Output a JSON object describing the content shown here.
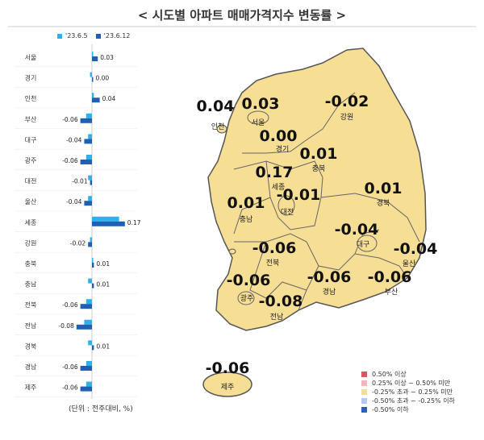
{
  "title": "< 시도별 아파트 매매가격지수 변동률 >",
  "colors": {
    "prev_week": "#2ab3ea",
    "curr_week": "#1f5fb4",
    "map_fill": "#f6de95",
    "map_stroke": "#555555"
  },
  "unit_note": "(단위 : 전주대비, %)",
  "chart_data": {
    "type": "bar",
    "orientation": "horizontal",
    "categories": [
      "서울",
      "경기",
      "인천",
      "부산",
      "대구",
      "광주",
      "대전",
      "울산",
      "세종",
      "강원",
      "충북",
      "충남",
      "전북",
      "전남",
      "경북",
      "경남",
      "제주"
    ],
    "series": [
      {
        "name": "'23.6.5",
        "values": [
          0.0,
          -0.01,
          0.01,
          -0.03,
          -0.02,
          -0.03,
          -0.02,
          -0.02,
          0.14,
          -0.01,
          0.0,
          -0.02,
          -0.03,
          -0.04,
          -0.02,
          -0.03,
          -0.03
        ]
      },
      {
        "name": "'23.6.12",
        "values": [
          0.03,
          0.0,
          0.04,
          -0.06,
          -0.04,
          -0.06,
          -0.01,
          -0.04,
          0.17,
          -0.02,
          0.01,
          0.01,
          -0.06,
          -0.08,
          0.01,
          -0.06,
          -0.06
        ]
      }
    ],
    "data_labels": [
      "0.03",
      "0.00",
      "0.04",
      "-0.06",
      "-0.04",
      "-0.06",
      "-0.01",
      "-0.04",
      "0.17",
      "-0.02",
      "0.01",
      "0.01",
      "-0.06",
      "-0.08",
      "0.01",
      "-0.06",
      "-0.06"
    ]
  },
  "map": {
    "regions": [
      {
        "name": "인천",
        "value": "0.04"
      },
      {
        "name": "서울",
        "value": "0.03"
      },
      {
        "name": "강원",
        "value": "-0.02"
      },
      {
        "name": "경기",
        "value": "0.00"
      },
      {
        "name": "충북",
        "value": "0.01"
      },
      {
        "name": "세종",
        "value": "0.17"
      },
      {
        "name": "대전",
        "value": "-0.01"
      },
      {
        "name": "충남",
        "value": "0.01"
      },
      {
        "name": "경북",
        "value": "0.01"
      },
      {
        "name": "대구",
        "value": "-0.04"
      },
      {
        "name": "울산",
        "value": "-0.04"
      },
      {
        "name": "전북",
        "value": "-0.06"
      },
      {
        "name": "광주",
        "value": "-0.06"
      },
      {
        "name": "경남",
        "value": "-0.06"
      },
      {
        "name": "부산",
        "value": "-0.06"
      },
      {
        "name": "전남",
        "value": "-0.08"
      },
      {
        "name": "제주",
        "value": "-0.06"
      }
    ]
  },
  "legend": [
    {
      "label": "0.50% 이상",
      "color": "#e2535d"
    },
    {
      "label": "0.25% 이상 ~ 0.50% 미만",
      "color": "#f4b6bb"
    },
    {
      "label": "-0.25% 초과 ~ 0.25% 미만",
      "color": "#f6de95"
    },
    {
      "label": "-0.50% 초과 ~ -0.25% 이하",
      "color": "#b7c9ea"
    },
    {
      "label": "-0.50% 이하",
      "color": "#2e5fb4"
    }
  ]
}
